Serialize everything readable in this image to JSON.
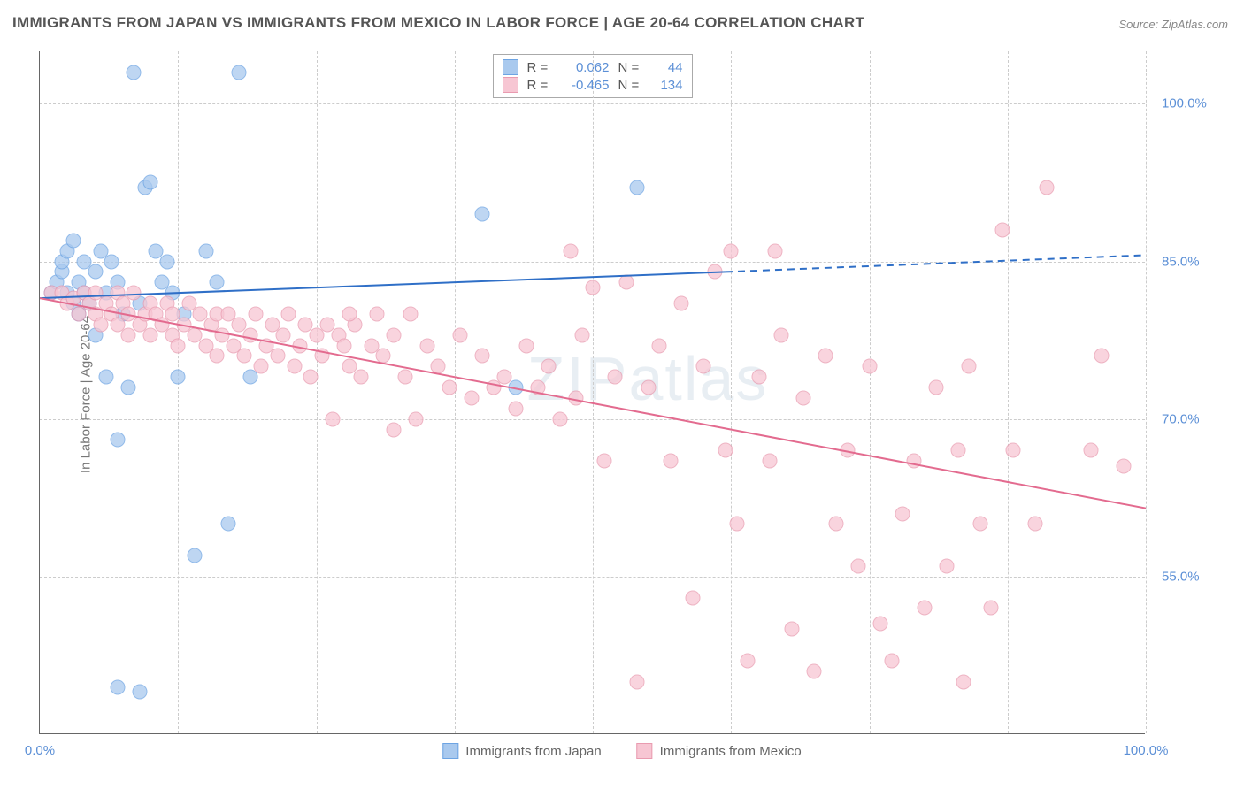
{
  "title": "IMMIGRANTS FROM JAPAN VS IMMIGRANTS FROM MEXICO IN LABOR FORCE | AGE 20-64 CORRELATION CHART",
  "source": "Source: ZipAtlas.com",
  "ylabel": "In Labor Force | Age 20-64",
  "watermark": "ZIPatlas",
  "chart": {
    "type": "scatter",
    "background_color": "#ffffff",
    "grid_color": "#cccccc",
    "axis_color": "#666666",
    "tick_color": "#5b8fd6",
    "xlim": [
      0,
      100
    ],
    "ylim": [
      40,
      105
    ],
    "x_ticks": [
      {
        "v": 0,
        "label": "0.0%"
      },
      {
        "v": 100,
        "label": "100.0%"
      }
    ],
    "x_grid_vals": [
      12.5,
      25,
      37.5,
      50,
      62.5,
      75,
      87.5,
      100
    ],
    "y_ticks": [
      {
        "v": 55,
        "label": "55.0%"
      },
      {
        "v": 70,
        "label": "70.0%"
      },
      {
        "v": 85,
        "label": "85.0%"
      },
      {
        "v": 100,
        "label": "100.0%"
      }
    ],
    "marker_radius": 8.5,
    "marker_stroke_width": 1.5,
    "marker_fill_opacity": 0.35,
    "series": [
      {
        "name": "Immigrants from Japan",
        "color_stroke": "#6da4e3",
        "color_fill": "#a9c9ee",
        "stats": {
          "R": "0.062",
          "N": "44"
        },
        "trend": {
          "x1": 0,
          "y1": 81.5,
          "x2": 62,
          "y2": 84,
          "ext_x2": 100,
          "ext_y2": 85.6,
          "color": "#2f6fc7",
          "width": 2
        },
        "points": [
          [
            1,
            82
          ],
          [
            1.5,
            83
          ],
          [
            2,
            84
          ],
          [
            2,
            85
          ],
          [
            2.5,
            82
          ],
          [
            2.5,
            86
          ],
          [
            3,
            81
          ],
          [
            3,
            87
          ],
          [
            3.5,
            80
          ],
          [
            3.5,
            83
          ],
          [
            4,
            85
          ],
          [
            4,
            82
          ],
          [
            4.5,
            81
          ],
          [
            5,
            84
          ],
          [
            5,
            78
          ],
          [
            5.5,
            86
          ],
          [
            6,
            82
          ],
          [
            6,
            74
          ],
          [
            6.5,
            85
          ],
          [
            7,
            83
          ],
          [
            7,
            68
          ],
          [
            7.5,
            80
          ],
          [
            8,
            73
          ],
          [
            8.5,
            103
          ],
          [
            9,
            81
          ],
          [
            9,
            44
          ],
          [
            9.5,
            92
          ],
          [
            10,
            92.5
          ],
          [
            10.5,
            86
          ],
          [
            11,
            83
          ],
          [
            11.5,
            85
          ],
          [
            12,
            82
          ],
          [
            12.5,
            74
          ],
          [
            13,
            80
          ],
          [
            14,
            57
          ],
          [
            15,
            86
          ],
          [
            16,
            83
          ],
          [
            17,
            60
          ],
          [
            18,
            103
          ],
          [
            19,
            74
          ],
          [
            7,
            44.5
          ],
          [
            40,
            89.5
          ],
          [
            43,
            73
          ],
          [
            54,
            92
          ]
        ]
      },
      {
        "name": "Immigrants from Mexico",
        "color_stroke": "#e99bb0",
        "color_fill": "#f7c6d3",
        "stats": {
          "R": "-0.465",
          "N": "134"
        },
        "trend": {
          "x1": 0,
          "y1": 81.5,
          "x2": 100,
          "y2": 61.5,
          "ext_x2": 100,
          "ext_y2": 61.5,
          "color": "#e36b8f",
          "width": 2
        },
        "points": [
          [
            1,
            82
          ],
          [
            2,
            82
          ],
          [
            2.5,
            81
          ],
          [
            3,
            81.5
          ],
          [
            3.5,
            80
          ],
          [
            4,
            82
          ],
          [
            4.5,
            81
          ],
          [
            5,
            80
          ],
          [
            5,
            82
          ],
          [
            5.5,
            79
          ],
          [
            6,
            81
          ],
          [
            6.5,
            80
          ],
          [
            7,
            82
          ],
          [
            7,
            79
          ],
          [
            7.5,
            81
          ],
          [
            8,
            78
          ],
          [
            8,
            80
          ],
          [
            8.5,
            82
          ],
          [
            9,
            79
          ],
          [
            9.5,
            80
          ],
          [
            10,
            81
          ],
          [
            10,
            78
          ],
          [
            10.5,
            80
          ],
          [
            11,
            79
          ],
          [
            11.5,
            81
          ],
          [
            12,
            78
          ],
          [
            12,
            80
          ],
          [
            12.5,
            77
          ],
          [
            13,
            79
          ],
          [
            13.5,
            81
          ],
          [
            14,
            78
          ],
          [
            14.5,
            80
          ],
          [
            15,
            77
          ],
          [
            15.5,
            79
          ],
          [
            16,
            76
          ],
          [
            16,
            80
          ],
          [
            16.5,
            78
          ],
          [
            17,
            80
          ],
          [
            17.5,
            77
          ],
          [
            18,
            79
          ],
          [
            18.5,
            76
          ],
          [
            19,
            78
          ],
          [
            19.5,
            80
          ],
          [
            20,
            75
          ],
          [
            20.5,
            77
          ],
          [
            21,
            79
          ],
          [
            21.5,
            76
          ],
          [
            22,
            78
          ],
          [
            22.5,
            80
          ],
          [
            23,
            75
          ],
          [
            23.5,
            77
          ],
          [
            24,
            79
          ],
          [
            24.5,
            74
          ],
          [
            25,
            78
          ],
          [
            25.5,
            76
          ],
          [
            26,
            79
          ],
          [
            26.5,
            70
          ],
          [
            27,
            78
          ],
          [
            27.5,
            77
          ],
          [
            28,
            75
          ],
          [
            28.5,
            79
          ],
          [
            29,
            74
          ],
          [
            30,
            77
          ],
          [
            30.5,
            80
          ],
          [
            31,
            76
          ],
          [
            32,
            78
          ],
          [
            33,
            74
          ],
          [
            33.5,
            80
          ],
          [
            34,
            70
          ],
          [
            35,
            77
          ],
          [
            36,
            75
          ],
          [
            37,
            73
          ],
          [
            38,
            78
          ],
          [
            39,
            72
          ],
          [
            40,
            76
          ],
          [
            41,
            73
          ],
          [
            42,
            74
          ],
          [
            43,
            71
          ],
          [
            44,
            77
          ],
          [
            45,
            73
          ],
          [
            46,
            75
          ],
          [
            47,
            70
          ],
          [
            48,
            86
          ],
          [
            48.5,
            72
          ],
          [
            49,
            78
          ],
          [
            50,
            82.5
          ],
          [
            51,
            66
          ],
          [
            52,
            74
          ],
          [
            53,
            83
          ],
          [
            54,
            45
          ],
          [
            55,
            73
          ],
          [
            56,
            77
          ],
          [
            57,
            66
          ],
          [
            58,
            81
          ],
          [
            59,
            53
          ],
          [
            60,
            75
          ],
          [
            61,
            84
          ],
          [
            62,
            67
          ],
          [
            62.5,
            86
          ],
          [
            63,
            60
          ],
          [
            64,
            47
          ],
          [
            65,
            74
          ],
          [
            66,
            66
          ],
          [
            66.5,
            86
          ],
          [
            67,
            78
          ],
          [
            68,
            50
          ],
          [
            69,
            72
          ],
          [
            70,
            46
          ],
          [
            71,
            76
          ],
          [
            72,
            60
          ],
          [
            73,
            67
          ],
          [
            74,
            56
          ],
          [
            75,
            75
          ],
          [
            76,
            50.5
          ],
          [
            77,
            47
          ],
          [
            78,
            61
          ],
          [
            79,
            66
          ],
          [
            80,
            52
          ],
          [
            81,
            73
          ],
          [
            82,
            56
          ],
          [
            83,
            67
          ],
          [
            83.5,
            45
          ],
          [
            84,
            75
          ],
          [
            85,
            60
          ],
          [
            86,
            52
          ],
          [
            87,
            88
          ],
          [
            88,
            67
          ],
          [
            90,
            60
          ],
          [
            91,
            92
          ],
          [
            95,
            67
          ],
          [
            96,
            76
          ],
          [
            98,
            65.5
          ],
          [
            28,
            80
          ],
          [
            32,
            69
          ]
        ]
      }
    ],
    "bottom_legend": [
      {
        "swatch": "japan",
        "label": "Immigrants from Japan"
      },
      {
        "swatch": "mexico",
        "label": "Immigrants from Mexico"
      }
    ]
  }
}
